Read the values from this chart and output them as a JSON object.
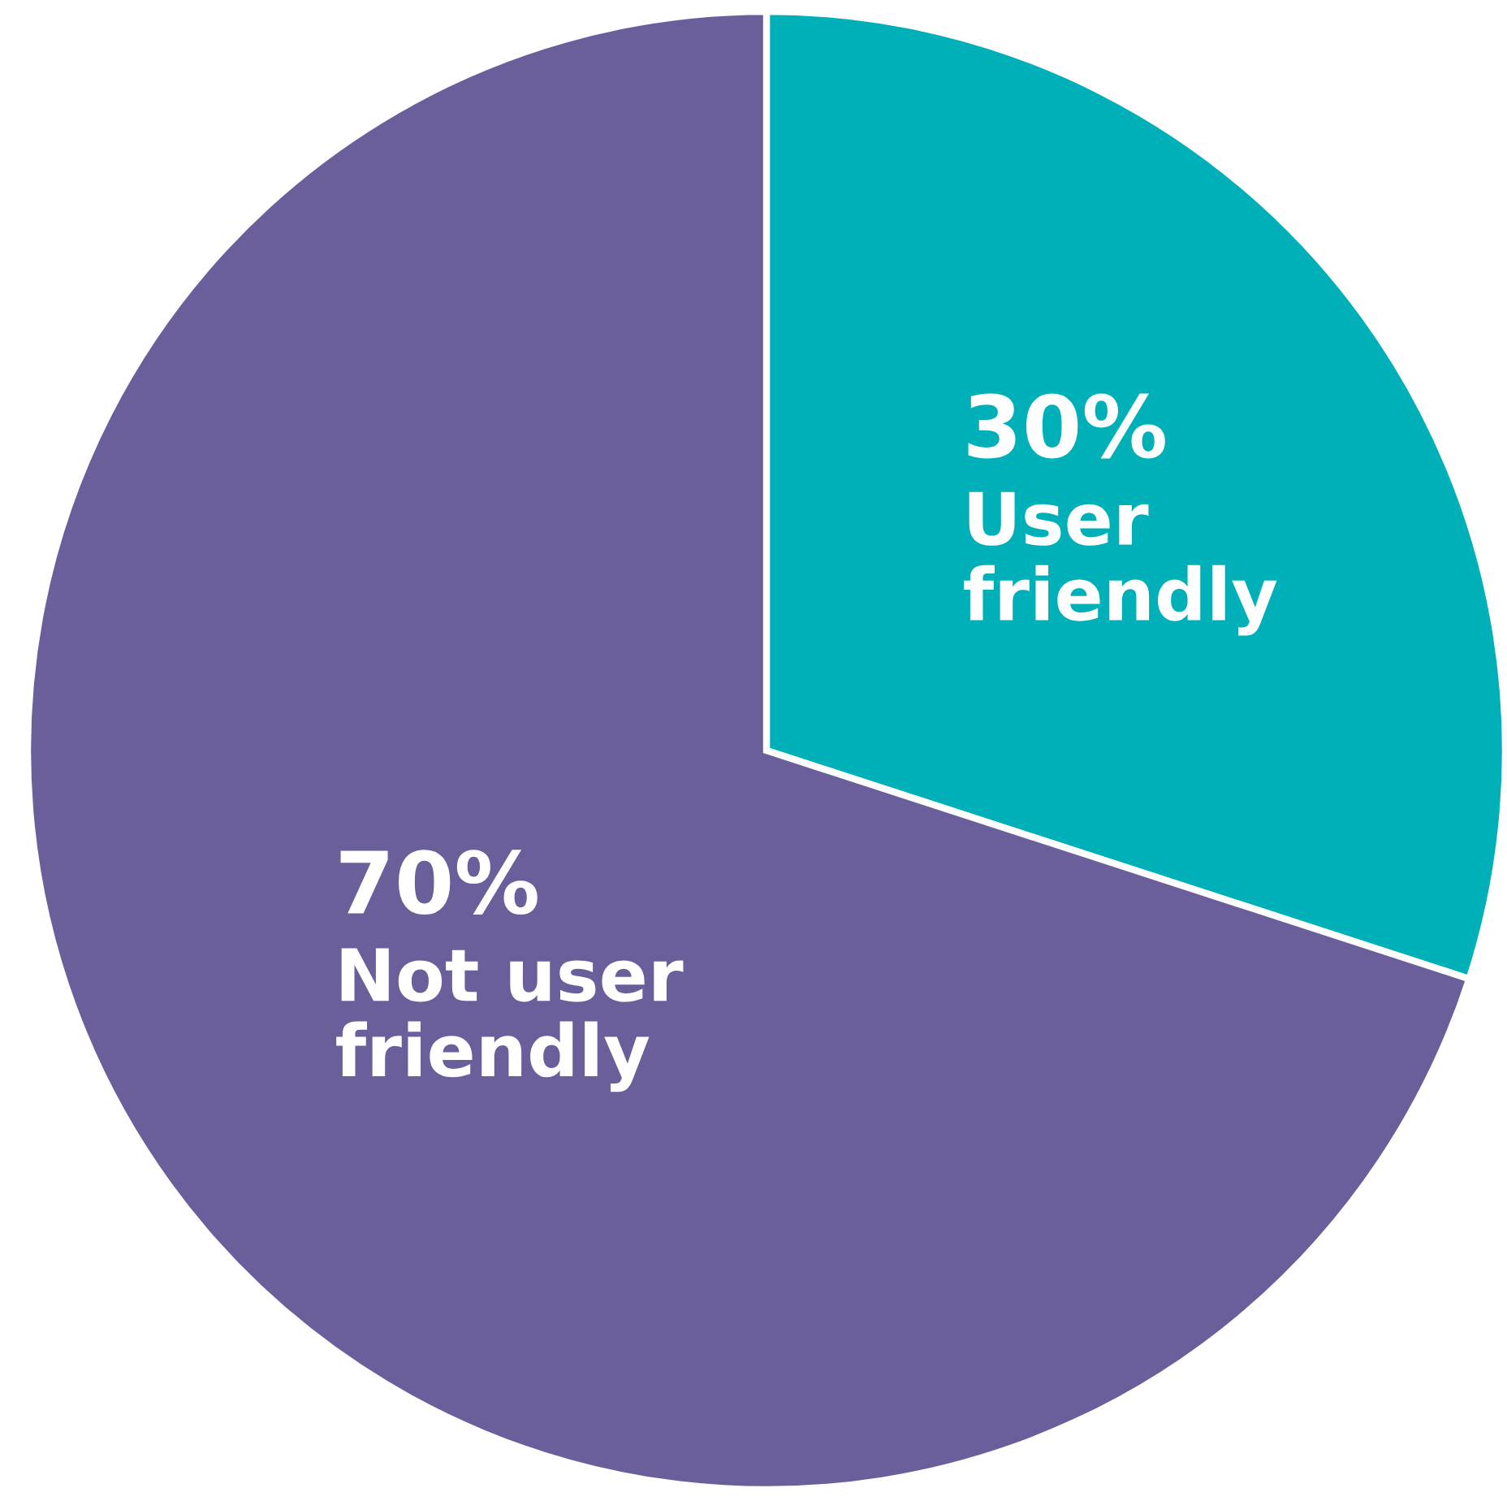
{
  "chart_data": {
    "type": "pie",
    "categories": [
      "User\nfriendly",
      "Not user\nfriendly"
    ],
    "values": [
      30,
      70
    ],
    "value_labels": [
      "30%",
      "70%"
    ],
    "colors": [
      "#00b0b9",
      "#6b5f9b"
    ],
    "legend": false
  }
}
